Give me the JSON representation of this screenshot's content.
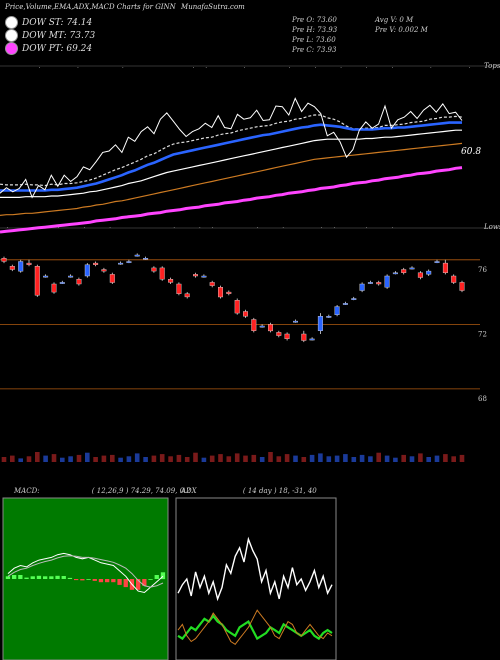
{
  "header": {
    "title": "Price,Volume,EMA,ADX,MACD Charts for GINN",
    "site": "MunafaSutra.com"
  },
  "legend": [
    {
      "label": "DOW ST: 74.14",
      "color": "#ffffff"
    },
    {
      "label": "DOW MT: 73.73",
      "color": "#ffffff"
    },
    {
      "label": "DOW PT: 69.24",
      "color": "#ff44ff"
    }
  ],
  "ohlc": {
    "open": "Pre   O: 73.60",
    "high": "Pre   H: 73.93",
    "low": "Pre   L: 73.60",
    "close": "Pre   C: 73.93",
    "avgvol": "Avg V: 0   M",
    "prevol": "Pre   V: 0.002   M"
  },
  "labels": {
    "tops": "Tops",
    "lows": "Lows",
    "ema_value": "60.8",
    "price_ticks": [
      "76",
      "72",
      "68"
    ]
  },
  "chart_data": [
    {
      "type": "line",
      "title": "EMA",
      "series": [
        {
          "name": "Price",
          "color": "#ffffff",
          "values": [
            64.2,
            65.0,
            64.4,
            64.9,
            66.2,
            63.6,
            65.3,
            64.7,
            66.8,
            65.2,
            66.8,
            65.9,
            66.6,
            68.0,
            67.6,
            68.8,
            70.1,
            70.3,
            71.2,
            70.1,
            72.3,
            71.7,
            73.1,
            73.8,
            72.8,
            74.9,
            75.8,
            74.6,
            73.4,
            72.4,
            73.1,
            73.5,
            74.3,
            73.7,
            75.4,
            73.7,
            73.5,
            75.6,
            74.9,
            75.1,
            76.2,
            74.7,
            74.8,
            76.8,
            76.7,
            75.5,
            77.9,
            76.0,
            77.2,
            76.7,
            75.7,
            72.5,
            73.0,
            71.6,
            69.4,
            70.5,
            73.3,
            74.5,
            73.6,
            74.2,
            76.8,
            73.6,
            74.8,
            75.2,
            76.0,
            75.0,
            76.2,
            76.9,
            75.9,
            77.1,
            75.7,
            75.9,
            74.7
          ]
        },
        {
          "name": "EMA-A",
          "color": "#dddddd",
          "values": [
            65.5,
            65.4,
            65.4,
            65.4,
            65.5,
            65.4,
            65.4,
            65.3,
            65.5,
            65.4,
            65.6,
            65.6,
            65.7,
            65.9,
            66.1,
            66.4,
            66.8,
            67.2,
            67.6,
            67.9,
            68.3,
            68.7,
            69.1,
            69.6,
            69.9,
            70.4,
            70.9,
            71.3,
            71.5,
            71.6,
            71.8,
            72.0,
            72.2,
            72.3,
            72.6,
            72.8,
            72.9,
            73.2,
            73.4,
            73.6,
            73.8,
            73.9,
            74.0,
            74.3,
            74.5,
            74.6,
            74.9,
            75.0,
            75.3,
            75.5,
            75.5,
            75.1,
            74.9,
            74.5,
            73.9,
            73.5,
            73.5,
            73.6,
            73.6,
            73.7,
            74.0,
            74.0,
            74.1,
            74.2,
            74.4,
            74.5,
            74.6,
            74.9,
            75.0,
            75.2,
            75.2,
            75.3,
            75.2
          ]
        },
        {
          "name": "EMA-B",
          "color": "#2a64ff",
          "values": [
            64.6,
            64.6,
            64.6,
            64.6,
            64.6,
            64.6,
            64.6,
            64.6,
            64.7,
            64.7,
            64.8,
            64.9,
            65.0,
            65.2,
            65.4,
            65.6,
            65.9,
            66.2,
            66.5,
            66.8,
            67.2,
            67.5,
            67.9,
            68.3,
            68.6,
            69.0,
            69.4,
            69.8,
            70.0,
            70.2,
            70.4,
            70.6,
            70.8,
            71.0,
            71.2,
            71.4,
            71.6,
            71.8,
            72.0,
            72.2,
            72.4,
            72.6,
            72.7,
            72.9,
            73.1,
            73.3,
            73.5,
            73.7,
            73.8,
            74.0,
            74.1,
            74.0,
            73.9,
            73.8,
            73.6,
            73.4,
            73.4,
            73.4,
            73.4,
            73.5,
            73.6,
            73.6,
            73.7,
            73.7,
            73.8,
            73.9,
            74.0,
            74.1,
            74.2,
            74.3,
            74.4,
            74.4,
            74.4
          ]
        },
        {
          "name": "EMA-C",
          "color": "#ffffff",
          "values": [
            63.6,
            63.6,
            63.6,
            63.6,
            63.7,
            63.7,
            63.7,
            63.7,
            63.8,
            63.8,
            63.9,
            64.0,
            64.1,
            64.2,
            64.4,
            64.5,
            64.7,
            64.9,
            65.1,
            65.3,
            65.6,
            65.8,
            66.0,
            66.3,
            66.6,
            66.9,
            67.2,
            67.4,
            67.6,
            67.8,
            68.0,
            68.2,
            68.4,
            68.6,
            68.8,
            69.0,
            69.2,
            69.4,
            69.6,
            69.8,
            70.0,
            70.2,
            70.4,
            70.6,
            70.8,
            71.0,
            71.2,
            71.4,
            71.6,
            71.8,
            71.9,
            72.0,
            72.0,
            72.0,
            72.0,
            72.0,
            72.0,
            72.1,
            72.1,
            72.2,
            72.3,
            72.3,
            72.4,
            72.5,
            72.6,
            72.7,
            72.8,
            72.9,
            73.0,
            73.1,
            73.2,
            73.3,
            73.3
          ]
        },
        {
          "name": "EMA-D",
          "color": "#cc7a22",
          "values": [
            61.0,
            61.1,
            61.1,
            61.2,
            61.3,
            61.3,
            61.4,
            61.5,
            61.6,
            61.7,
            61.8,
            61.9,
            62.0,
            62.2,
            62.3,
            62.5,
            62.6,
            62.8,
            63.0,
            63.1,
            63.3,
            63.5,
            63.7,
            63.9,
            64.1,
            64.3,
            64.5,
            64.7,
            64.9,
            65.1,
            65.3,
            65.5,
            65.7,
            65.9,
            66.1,
            66.3,
            66.5,
            66.7,
            66.9,
            67.1,
            67.3,
            67.5,
            67.7,
            67.9,
            68.1,
            68.3,
            68.5,
            68.7,
            68.9,
            69.1,
            69.2,
            69.3,
            69.4,
            69.5,
            69.6,
            69.7,
            69.8,
            69.9,
            70.0,
            70.1,
            70.2,
            70.3,
            70.4,
            70.5,
            70.6,
            70.7,
            70.8,
            70.9,
            71.0,
            71.1,
            71.2,
            71.3,
            71.4
          ]
        },
        {
          "name": "EMA-E",
          "color": "#ff44ff",
          "values": [
            58.6,
            58.7,
            58.8,
            58.9,
            59.0,
            59.1,
            59.2,
            59.3,
            59.4,
            59.5,
            59.6,
            59.7,
            59.8,
            59.9,
            60.0,
            60.2,
            60.3,
            60.4,
            60.5,
            60.7,
            60.8,
            60.9,
            61.0,
            61.2,
            61.3,
            61.4,
            61.6,
            61.7,
            61.8,
            62.0,
            62.1,
            62.2,
            62.4,
            62.5,
            62.6,
            62.8,
            62.9,
            63.0,
            63.2,
            63.3,
            63.5,
            63.6,
            63.7,
            63.9,
            64.0,
            64.2,
            64.3,
            64.4,
            64.6,
            64.7,
            64.9,
            65.0,
            65.1,
            65.3,
            65.4,
            65.6,
            65.7,
            65.8,
            66.0,
            66.1,
            66.3,
            66.4,
            66.5,
            66.7,
            66.8,
            67.0,
            67.1,
            67.2,
            67.4,
            67.5,
            67.6,
            67.8,
            67.9
          ]
        }
      ],
      "ylim": [
        56,
        82
      ],
      "tops_x": [
        6,
        12,
        19,
        30,
        32,
        38,
        45,
        49,
        53,
        57,
        61,
        67,
        73
      ],
      "lows_x": [
        1,
        5,
        9,
        13,
        17,
        27,
        31,
        33,
        40,
        44,
        50,
        52,
        57,
        61
      ]
    },
    {
      "type": "candlestick",
      "title": "Price",
      "ylim": [
        67,
        76.3
      ],
      "yticks": [
        76,
        72,
        68
      ],
      "candles": [
        [
          76.1,
          76.2,
          75.8,
          75.9
        ],
        [
          75.6,
          75.7,
          75.3,
          75.4
        ],
        [
          75.3,
          76.0,
          75.2,
          75.9
        ],
        [
          75.8,
          76.0,
          75.6,
          75.7
        ],
        [
          75.6,
          75.7,
          73.7,
          73.8
        ],
        [
          75.0,
          75.1,
          74.9,
          75.0
        ],
        [
          74.5,
          74.6,
          73.9,
          74.0
        ],
        [
          74.6,
          74.7,
          74.5,
          74.6
        ],
        [
          75.0,
          75.1,
          74.9,
          75.0
        ],
        [
          74.8,
          74.9,
          74.4,
          74.5
        ],
        [
          75.0,
          75.8,
          74.9,
          75.7
        ],
        [
          75.8,
          75.9,
          75.6,
          75.7
        ],
        [
          75.4,
          75.5,
          75.2,
          75.3
        ],
        [
          75.1,
          75.2,
          74.5,
          74.6
        ],
        [
          75.8,
          75.9,
          75.7,
          75.8
        ],
        [
          75.9,
          76.0,
          75.8,
          75.9
        ],
        [
          76.3,
          76.4,
          76.2,
          76.3
        ],
        [
          76.1,
          76.2,
          76.0,
          76.1
        ],
        [
          75.5,
          75.6,
          75.2,
          75.3
        ],
        [
          75.5,
          75.6,
          74.7,
          74.8
        ],
        [
          74.8,
          74.9,
          74.5,
          74.6
        ],
        [
          74.5,
          74.6,
          73.8,
          73.9
        ],
        [
          73.9,
          74.0,
          73.6,
          73.7
        ],
        [
          75.1,
          75.2,
          74.9,
          75.0
        ],
        [
          75.0,
          75.1,
          74.9,
          75.0
        ],
        [
          74.6,
          74.7,
          74.3,
          74.4
        ],
        [
          74.3,
          74.4,
          73.6,
          73.7
        ],
        [
          74.0,
          74.1,
          73.8,
          73.9
        ],
        [
          73.5,
          73.6,
          72.6,
          72.7
        ],
        [
          72.8,
          72.9,
          72.4,
          72.5
        ],
        [
          72.3,
          72.4,
          71.5,
          71.6
        ],
        [
          71.9,
          72.0,
          71.8,
          71.9
        ],
        [
          72.0,
          72.1,
          71.5,
          71.6
        ],
        [
          71.5,
          71.6,
          71.2,
          71.3
        ],
        [
          71.4,
          71.5,
          71.0,
          71.1
        ],
        [
          72.2,
          72.3,
          72.1,
          72.2
        ],
        [
          71.4,
          71.6,
          70.9,
          71.0
        ],
        [
          71.1,
          71.2,
          71.0,
          71.1
        ],
        [
          71.6,
          72.7,
          71.4,
          72.5
        ],
        [
          72.5,
          72.6,
          72.4,
          72.5
        ],
        [
          72.6,
          73.2,
          72.5,
          73.1
        ],
        [
          73.3,
          73.4,
          73.2,
          73.3
        ],
        [
          73.6,
          73.7,
          73.5,
          73.6
        ],
        [
          74.1,
          74.6,
          74.0,
          74.5
        ],
        [
          74.6,
          74.7,
          74.5,
          74.6
        ],
        [
          74.6,
          74.7,
          74.4,
          74.5
        ],
        [
          74.3,
          75.1,
          74.2,
          75.0
        ],
        [
          75.2,
          75.3,
          75.1,
          75.2
        ],
        [
          75.4,
          75.5,
          75.1,
          75.2
        ],
        [
          75.5,
          75.6,
          75.4,
          75.5
        ],
        [
          75.2,
          75.3,
          74.8,
          74.9
        ],
        [
          75.1,
          75.4,
          75.0,
          75.3
        ],
        [
          75.9,
          76.0,
          75.8,
          75.9
        ],
        [
          75.8,
          76.0,
          75.1,
          75.2
        ],
        [
          75.0,
          75.1,
          74.5,
          74.6
        ],
        [
          74.6,
          74.7,
          74.0,
          74.1
        ]
      ],
      "volume": [
        0.7,
        0.9,
        0.5,
        0.8,
        1.4,
        0.9,
        1.1,
        0.6,
        0.8,
        1.0,
        1.3,
        0.7,
        0.9,
        1.0,
        0.6,
        0.8,
        1.2,
        0.7,
        0.9,
        1.1,
        0.8,
        1.0,
        0.7,
        1.3,
        0.6,
        0.9,
        1.1,
        0.8,
        1.2,
        0.9,
        1.0,
        0.7,
        1.4,
        0.8,
        1.1,
        0.9,
        0.7,
        1.0,
        1.2,
        0.8,
        0.9,
        1.1,
        0.7,
        1.0,
        0.8,
        1.3,
        0.9,
        0.6,
        1.0,
        0.8,
        1.2,
        0.7,
        0.9,
        1.1,
        0.8,
        1.0
      ]
    },
    {
      "type": "line",
      "title": "MACD",
      "params": "( 12,26,9 ) 74.29, 74.09, 0.2",
      "series": [
        {
          "name": "MACD",
          "color": "#ffffff",
          "values": [
            0.2,
            0.4,
            0.5,
            0.45,
            0.6,
            0.7,
            0.75,
            0.8,
            0.9,
            0.95,
            0.9,
            0.8,
            0.75,
            0.8,
            0.7,
            0.6,
            0.55,
            0.5,
            0.3,
            0.1,
            -0.2,
            -0.45,
            -0.5,
            -0.3,
            -0.1,
            0.1
          ]
        },
        {
          "name": "Signal",
          "color": "#bbbbbb",
          "values": [
            0.1,
            0.25,
            0.35,
            0.4,
            0.5,
            0.58,
            0.65,
            0.7,
            0.78,
            0.84,
            0.86,
            0.84,
            0.8,
            0.8,
            0.77,
            0.72,
            0.67,
            0.62,
            0.52,
            0.4,
            0.2,
            -0.05,
            -0.25,
            -0.3,
            -0.25,
            -0.15
          ]
        }
      ],
      "histogram": [
        0.1,
        0.15,
        0.15,
        0.05,
        0.1,
        0.12,
        0.1,
        0.1,
        0.12,
        0.11,
        0.04,
        -0.04,
        -0.05,
        0.0,
        -0.07,
        -0.12,
        -0.12,
        -0.12,
        -0.22,
        -0.3,
        -0.4,
        -0.4,
        -0.25,
        0.0,
        0.15,
        0.25
      ],
      "ylim": [
        -3,
        3
      ]
    },
    {
      "type": "line",
      "title": "ADX",
      "params": "( 14 day ) 18, -31, 40",
      "series": [
        {
          "name": "+DI",
          "color": "#ffffff",
          "values": [
            40,
            46,
            50,
            38,
            55,
            44,
            52,
            40,
            48,
            36,
            44,
            60,
            54,
            66,
            72,
            62,
            78,
            70,
            64,
            48,
            56,
            40,
            48,
            36,
            52,
            44,
            58,
            46,
            50,
            42,
            48,
            56,
            44,
            52,
            40,
            46
          ]
        },
        {
          "name": "ADX",
          "color": "#22dd22",
          "values": [
            10,
            8,
            12,
            16,
            14,
            18,
            22,
            20,
            24,
            20,
            18,
            14,
            12,
            10,
            16,
            18,
            20,
            14,
            8,
            10,
            12,
            16,
            14,
            12,
            18,
            16,
            14,
            12,
            10,
            12,
            14,
            10,
            8,
            12,
            14,
            12
          ]
        },
        {
          "name": "-DI",
          "color": "#cc7a22",
          "values": [
            14,
            18,
            10,
            6,
            8,
            12,
            16,
            20,
            26,
            22,
            18,
            12,
            6,
            4,
            8,
            12,
            16,
            22,
            28,
            24,
            20,
            16,
            10,
            8,
            14,
            20,
            18,
            12,
            10,
            14,
            18,
            14,
            10,
            8,
            12,
            10
          ]
        }
      ],
      "ylim": [
        0,
        100
      ]
    }
  ]
}
